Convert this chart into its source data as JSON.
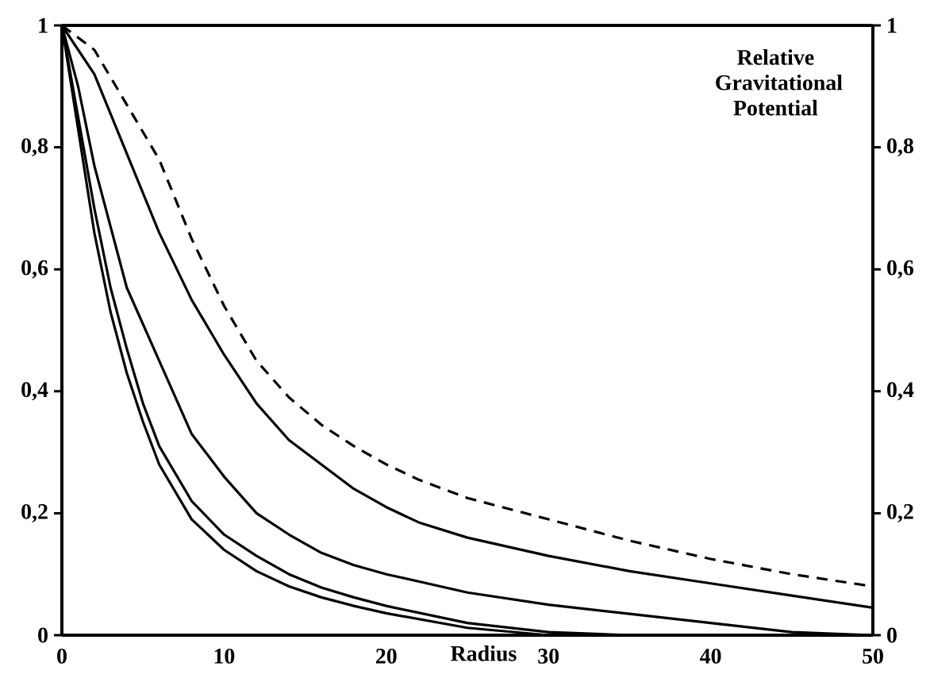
{
  "chart_data": {
    "type": "line",
    "xlabel": "Radius",
    "y2label": "Relative Gravitational Potential",
    "xlim": [
      0,
      50
    ],
    "xticks": [
      0,
      10,
      20,
      30,
      40,
      50
    ],
    "ylim": [
      0,
      1
    ],
    "yticks": [
      0,
      {
        "value": 0.2,
        "label": "0,2"
      },
      {
        "value": 0.4,
        "label": "0,4"
      },
      {
        "value": 0.6,
        "label": "0,6"
      },
      {
        "value": 0.8,
        "label": "0,8"
      },
      1
    ],
    "y2lim": [
      0,
      1
    ],
    "y2ticks": [
      0,
      {
        "value": 0.2,
        "label": "0,2"
      },
      {
        "value": 0.4,
        "label": "0,4"
      },
      {
        "value": 0.6,
        "label": "0,6"
      },
      {
        "value": 0.8,
        "label": "0,8"
      },
      1
    ],
    "series": [
      {
        "color": "#000000",
        "line_style": "dashed",
        "x": [
          0,
          2,
          4,
          6,
          8,
          10,
          12,
          14,
          16,
          18,
          20,
          22,
          25,
          30,
          35,
          40,
          45,
          50
        ],
        "values": [
          1,
          0.96,
          0.87,
          0.78,
          0.65,
          0.54,
          0.45,
          0.39,
          0.345,
          0.31,
          0.28,
          0.255,
          0.225,
          0.19,
          0.155,
          0.125,
          0.1,
          0.08
        ]
      },
      {
        "color": "#000000",
        "x": [
          0,
          2,
          4,
          6,
          8,
          10,
          12,
          14,
          16,
          18,
          20,
          22,
          25,
          30,
          35,
          40,
          45,
          50
        ],
        "values": [
          1,
          0.92,
          0.79,
          0.66,
          0.55,
          0.46,
          0.38,
          0.32,
          0.28,
          0.24,
          0.21,
          0.185,
          0.16,
          0.13,
          0.105,
          0.085,
          0.065,
          0.045
        ]
      },
      {
        "color": "#000000",
        "x": [
          0,
          1,
          2,
          4,
          6,
          8,
          10,
          12,
          14,
          16,
          18,
          20,
          25,
          30,
          35,
          40,
          45,
          50
        ],
        "values": [
          1,
          0.9,
          0.77,
          0.57,
          0.45,
          0.33,
          0.26,
          0.2,
          0.165,
          0.135,
          0.115,
          0.1,
          0.07,
          0.05,
          0.035,
          0.02,
          0.005,
          0
        ]
      },
      {
        "color": "#000000",
        "x": [
          0,
          1,
          2,
          3,
          4,
          5,
          6,
          8,
          10,
          12,
          14,
          16,
          18,
          20,
          25,
          30,
          35
        ],
        "values": [
          1,
          0.85,
          0.7,
          0.57,
          0.47,
          0.38,
          0.31,
          0.22,
          0.165,
          0.13,
          0.1,
          0.078,
          0.062,
          0.048,
          0.02,
          0.005,
          0
        ]
      },
      {
        "color": "#000000",
        "x": [
          0,
          1,
          2,
          3,
          4,
          5,
          6,
          8,
          10,
          12,
          14,
          16,
          18,
          20,
          25,
          30
        ],
        "values": [
          1,
          0.83,
          0.66,
          0.53,
          0.43,
          0.35,
          0.28,
          0.19,
          0.14,
          0.105,
          0.08,
          0.062,
          0.048,
          0.036,
          0.012,
          0
        ]
      }
    ]
  }
}
